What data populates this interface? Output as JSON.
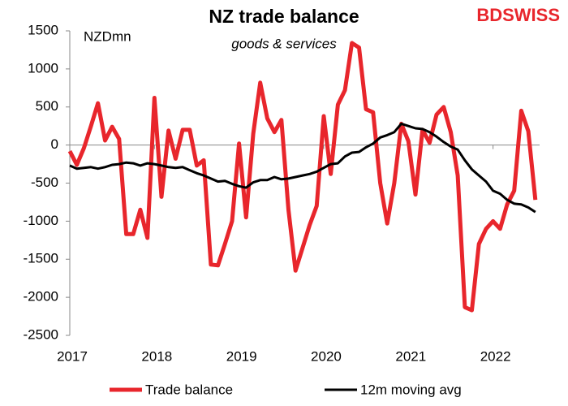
{
  "brand": "BDSWISS",
  "chart_data": {
    "type": "line",
    "title": "NZ trade balance",
    "subtitle": "goods & services",
    "y_unit_label": "NZDmn",
    "x": [
      2017,
      2017.083,
      2017.167,
      2017.25,
      2017.333,
      2017.417,
      2017.5,
      2017.583,
      2017.667,
      2017.75,
      2017.833,
      2017.917,
      2018,
      2018.083,
      2018.167,
      2018.25,
      2018.333,
      2018.417,
      2018.5,
      2018.583,
      2018.667,
      2018.75,
      2018.833,
      2018.917,
      2019,
      2019.083,
      2019.167,
      2019.25,
      2019.333,
      2019.417,
      2019.5,
      2019.583,
      2019.667,
      2019.75,
      2019.833,
      2019.917,
      2020,
      2020.083,
      2020.167,
      2020.25,
      2020.333,
      2020.417,
      2020.5,
      2020.583,
      2020.667,
      2020.75,
      2020.833,
      2020.917,
      2021,
      2021.083,
      2021.167,
      2021.25,
      2021.333,
      2021.417,
      2021.5,
      2021.583,
      2021.667,
      2021.75,
      2021.833,
      2021.917,
      2022,
      2022.083,
      2022.167,
      2022.25,
      2022.333,
      2022.417,
      2022.5
    ],
    "series": [
      {
        "name": "Trade balance",
        "color": "#e8262c",
        "width": 5,
        "values": [
          -80,
          -260,
          -40,
          250,
          550,
          60,
          240,
          80,
          -1170,
          -1170,
          -850,
          -1220,
          620,
          -680,
          190,
          -180,
          200,
          200,
          -270,
          -200,
          -1570,
          -1580,
          -1300,
          -1000,
          20,
          -950,
          150,
          820,
          350,
          170,
          330,
          -850,
          -1650,
          -1350,
          -1050,
          -800,
          380,
          -380,
          530,
          720,
          1340,
          1280,
          470,
          430,
          -500,
          -1030,
          -500,
          280,
          50,
          -650,
          200,
          30,
          400,
          500,
          170,
          -400,
          -2130,
          -2170,
          -1300,
          -1100,
          -1000,
          -1100,
          -780,
          -600,
          450,
          180,
          -720
        ]
      },
      {
        "name": "12m moving avg",
        "color": "#000000",
        "width": 3,
        "values": [
          -270,
          -310,
          -300,
          -290,
          -310,
          -290,
          -260,
          -250,
          -230,
          -240,
          -270,
          -240,
          -250,
          -270,
          -290,
          -300,
          -290,
          -330,
          -370,
          -400,
          -440,
          -480,
          -470,
          -510,
          -540,
          -560,
          -490,
          -460,
          -460,
          -420,
          -450,
          -440,
          -420,
          -400,
          -380,
          -350,
          -300,
          -250,
          -240,
          -150,
          -100,
          -90,
          -30,
          20,
          100,
          130,
          170,
          280,
          250,
          220,
          210,
          170,
          110,
          40,
          -20,
          -60,
          -200,
          -320,
          -400,
          -480,
          -600,
          -640,
          -720,
          -770,
          -780,
          -820,
          -880
        ]
      }
    ],
    "xlim": [
      2017,
      2022.55
    ],
    "xticks": [
      2017,
      2018,
      2019,
      2020,
      2021,
      2022
    ],
    "ylim": [
      -2500,
      1500
    ],
    "yticks": [
      -2500,
      -2000,
      -1500,
      -1000,
      -500,
      0,
      500,
      1000,
      1500
    ],
    "grid": false
  }
}
